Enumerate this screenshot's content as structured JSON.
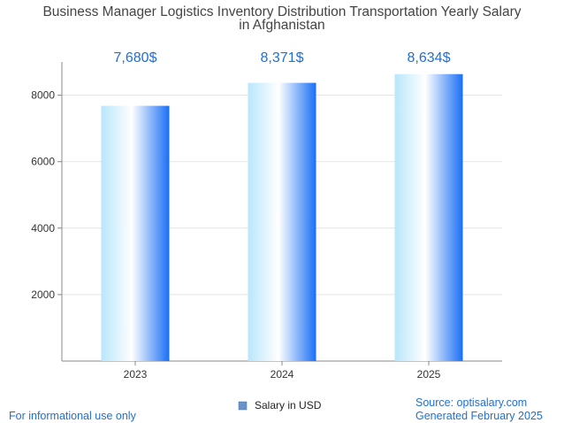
{
  "chart_data": {
    "type": "bar",
    "title_lines": [
      "Business Manager Logistics Inventory Distribution Transportation Yearly Salary",
      "in Afghanistan"
    ],
    "categories": [
      "2023",
      "2024",
      "2025"
    ],
    "series": [
      {
        "name": "Salary in USD",
        "values": [
          7680,
          8371,
          8634
        ]
      }
    ],
    "value_labels": [
      "7,680$",
      "8,371$",
      "8,634$"
    ],
    "y_ticks": [
      2000,
      4000,
      6000,
      8000
    ],
    "ylim": [
      0,
      9000
    ],
    "grid": true,
    "legend_position": "bottom-center"
  },
  "footer": {
    "left": "For informational use only",
    "source": "Source: optisalary.com",
    "generated": "Generated February 2025"
  },
  "colors": {
    "bar_light": "#b8e6fb",
    "bar_white": "#ffffff",
    "bar_dark": "#1a6ff5",
    "value_text": "#1e6fd9",
    "legend_swatch": "#6a93c8"
  }
}
